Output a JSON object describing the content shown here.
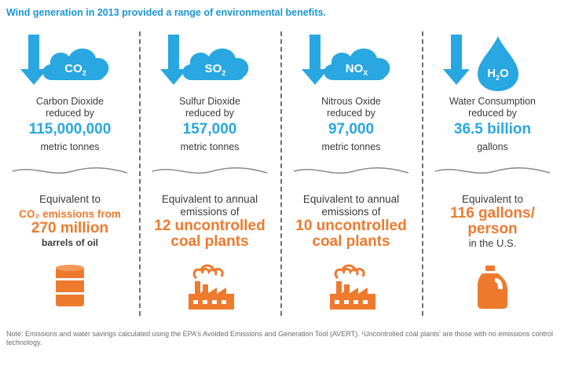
{
  "title": "Wind generation in 2013 provided a range of environmental benefits.",
  "columns": [
    {
      "badge_main": "CO",
      "badge_sub": "2",
      "label_line1": "Carbon Dioxide",
      "label_line2": "reduced by",
      "value": "115,000,000",
      "unit": "metric tonnes",
      "equiv_line1": "Equivalent to",
      "equiv_line2": "CO₂ emissions from",
      "equiv_big": "270 million",
      "equiv_line3": "barrels of oil",
      "bottom_icon": "oil-barrel-icon"
    },
    {
      "badge_main": "SO",
      "badge_sub": "2",
      "label_line1": "Sulfur Dioxide",
      "label_line2": "reduced by",
      "value": "157,000",
      "unit": "metric tonnes",
      "equiv_line1": "Equivalent to annual",
      "equiv_line2": "emissions of",
      "equiv_big1": "12 uncontrolled",
      "equiv_big2": "coal plants",
      "bottom_icon": "factory-icon"
    },
    {
      "badge_main": "NO",
      "badge_sub": "X",
      "label_line1": "Nitrous Oxide",
      "label_line2": "reduced by",
      "value": "97,000",
      "unit": "metric tonnes",
      "equiv_line1": "Equivalent to annual",
      "equiv_line2": "emissions of",
      "equiv_big1": "10 uncontrolled",
      "equiv_big2": "coal plants",
      "bottom_icon": "factory-icon"
    },
    {
      "badge_main": "H",
      "badge_sub": "2",
      "badge_tail": "O",
      "label_line1": "Water Consumption",
      "label_line2": "reduced by",
      "value": "36.5 billion",
      "unit": "gallons",
      "equiv_line1": "Equivalent to",
      "equiv_big1": "116 gallons/",
      "equiv_big2": "person",
      "equiv_line3": "in the U.S.",
      "bottom_icon": "water-jug-icon"
    }
  ],
  "note": "Note: Emissions and water savings calculated using the EPA's Avoided Emissions and Generation Tool (AVERT). ¹Uncontrolled coal plants' are those with no emissions control technology.",
  "colors": {
    "blue": "#29a7e0",
    "orange": "#ee7a2e",
    "text": "#3b3b3b"
  }
}
